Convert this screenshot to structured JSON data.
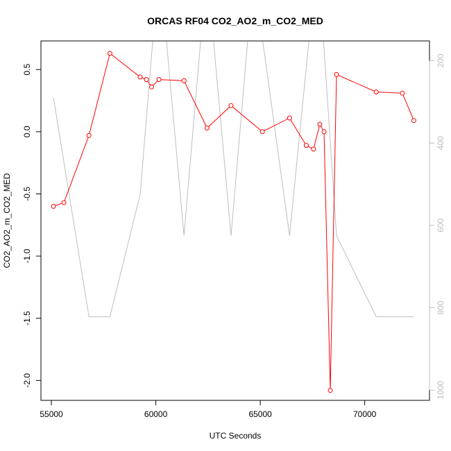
{
  "chart_data": {
    "type": "line",
    "title": "ORCAS RF04 CO2_AO2_m_CO2_MED",
    "xlabel": "UTC Seconds",
    "ylabel": "CO2_AO2_m_CO2_MED",
    "xlim": [
      54500,
      73100
    ],
    "ylim": [
      -2.16,
      0.73
    ],
    "y2lim": [
      1025,
      152
    ],
    "x_ticks": [
      55000,
      60000,
      65000,
      70000
    ],
    "x_tick_labels": [
      "55000",
      "60000",
      "65000",
      "70000"
    ],
    "y_ticks": [
      0.5,
      0.0,
      -0.5,
      -1.0,
      -1.5,
      -2.0
    ],
    "y_tick_labels": [
      "0.5",
      "0.0",
      "-0.5",
      "-1.0",
      "-1.5",
      "-2.0"
    ],
    "y2_ticks": [
      200,
      400,
      600,
      800,
      1000
    ],
    "y2_tick_labels": [
      "200",
      "400",
      "600",
      "800",
      "1000"
    ],
    "colors": {
      "primary": "#ff0000",
      "secondary": "#bebebe",
      "axis": "#000000"
    },
    "grid": false,
    "series": [
      {
        "axis": "left",
        "style": "line+points",
        "color": "#ff0000",
        "x": [
          55100,
          55600,
          56800,
          57800,
          59250,
          59550,
          59800,
          60150,
          61350,
          62450,
          63600,
          65100,
          66400,
          67200,
          67550,
          67850,
          68050,
          68350,
          68650,
          70550,
          71800,
          72350
        ],
        "y": [
          -0.6,
          -0.57,
          -0.03,
          0.63,
          0.44,
          0.42,
          0.36,
          0.42,
          0.41,
          0.03,
          0.21,
          0.0,
          0.11,
          -0.11,
          -0.14,
          0.06,
          0.0,
          -2.08,
          0.46,
          0.32,
          0.31,
          0.09
        ]
      },
      {
        "axis": "right",
        "style": "line",
        "color": "#bebebe",
        "x": [
          55100,
          56800,
          57800,
          59250,
          59950,
          60400,
          61350,
          62250,
          62650,
          63600,
          64500,
          64950,
          66400,
          67450,
          67950,
          68650,
          70550,
          72350
        ],
        "y": [
          290,
          822,
          822,
          525,
          90,
          90,
          625,
          90,
          90,
          625,
          90,
          90,
          625,
          90,
          90,
          625,
          822,
          822
        ]
      }
    ]
  }
}
